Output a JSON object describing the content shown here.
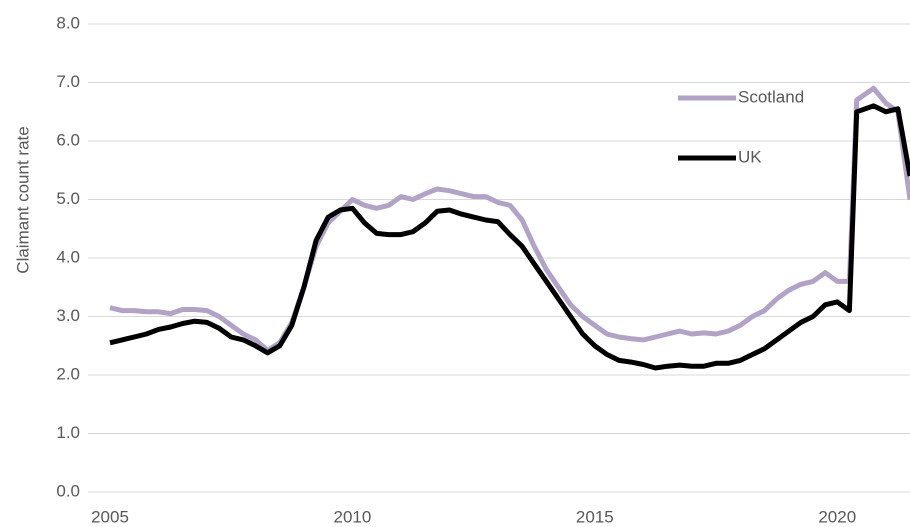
{
  "chart_data": {
    "type": "line",
    "y_label": "Claimant count rate",
    "x": [
      2005,
      2005.25,
      2005.5,
      2005.75,
      2006,
      2006.25,
      2006.5,
      2006.75,
      2007,
      2007.25,
      2007.5,
      2007.75,
      2008,
      2008.25,
      2008.5,
      2008.75,
      2009,
      2009.25,
      2009.5,
      2009.75,
      2010,
      2010.25,
      2010.5,
      2010.75,
      2011,
      2011.25,
      2011.5,
      2011.75,
      2012,
      2012.25,
      2012.5,
      2012.75,
      2013,
      2013.25,
      2013.5,
      2013.75,
      2014,
      2014.25,
      2014.5,
      2014.75,
      2015,
      2015.25,
      2015.5,
      2015.75,
      2016,
      2016.25,
      2016.5,
      2016.75,
      2017,
      2017.25,
      2017.5,
      2017.75,
      2018,
      2018.25,
      2018.5,
      2018.75,
      2019,
      2019.25,
      2019.5,
      2019.75,
      2020,
      2020.25,
      2020.4,
      2020.75,
      2021,
      2021.25,
      2021.5
    ],
    "series": [
      {
        "name": "Scotland",
        "color": "#b3a2c7",
        "values": [
          3.15,
          3.1,
          3.1,
          3.08,
          3.08,
          3.05,
          3.12,
          3.12,
          3.1,
          3.0,
          2.85,
          2.7,
          2.6,
          2.42,
          2.55,
          2.9,
          3.5,
          4.2,
          4.6,
          4.8,
          5.0,
          4.9,
          4.85,
          4.9,
          5.05,
          5.0,
          5.1,
          5.18,
          5.15,
          5.1,
          5.05,
          5.05,
          4.95,
          4.9,
          4.65,
          4.2,
          3.8,
          3.5,
          3.2,
          3.0,
          2.85,
          2.7,
          2.65,
          2.62,
          2.6,
          2.65,
          2.7,
          2.75,
          2.7,
          2.72,
          2.7,
          2.75,
          2.85,
          3.0,
          3.1,
          3.3,
          3.45,
          3.55,
          3.6,
          3.75,
          3.6,
          3.6,
          6.7,
          6.9,
          6.65,
          6.5,
          5.0
        ]
      },
      {
        "name": "UK",
        "color": "#000000",
        "values": [
          2.55,
          2.6,
          2.65,
          2.7,
          2.78,
          2.82,
          2.88,
          2.92,
          2.9,
          2.8,
          2.65,
          2.6,
          2.5,
          2.38,
          2.5,
          2.85,
          3.5,
          4.3,
          4.7,
          4.82,
          4.85,
          4.6,
          4.42,
          4.4,
          4.4,
          4.45,
          4.6,
          4.8,
          4.82,
          4.75,
          4.7,
          4.65,
          4.62,
          4.4,
          4.2,
          3.9,
          3.6,
          3.3,
          3.0,
          2.7,
          2.5,
          2.35,
          2.25,
          2.22,
          2.18,
          2.12,
          2.15,
          2.17,
          2.15,
          2.15,
          2.2,
          2.2,
          2.25,
          2.35,
          2.45,
          2.6,
          2.75,
          2.9,
          3.0,
          3.2,
          3.25,
          3.1,
          6.5,
          6.6,
          6.5,
          6.55,
          5.4
        ]
      }
    ],
    "xlim": [
      2005,
      2021.5
    ],
    "xticks": [
      2005,
      2010,
      2015,
      2020
    ],
    "ylim": [
      0,
      8
    ],
    "yticks": [
      {
        "value": 0,
        "label": "0.0"
      },
      {
        "value": 1,
        "label": "1.0"
      },
      {
        "value": 2,
        "label": "2.0"
      },
      {
        "value": 3,
        "label": "3.0"
      },
      {
        "value": 4,
        "label": "4.0"
      },
      {
        "value": 5,
        "label": "5.0"
      },
      {
        "value": 6,
        "label": "6.0"
      },
      {
        "value": 7,
        "label": "7.0"
      },
      {
        "value": 8,
        "label": "8.0"
      }
    ],
    "grid": true,
    "legend": "top-right"
  }
}
